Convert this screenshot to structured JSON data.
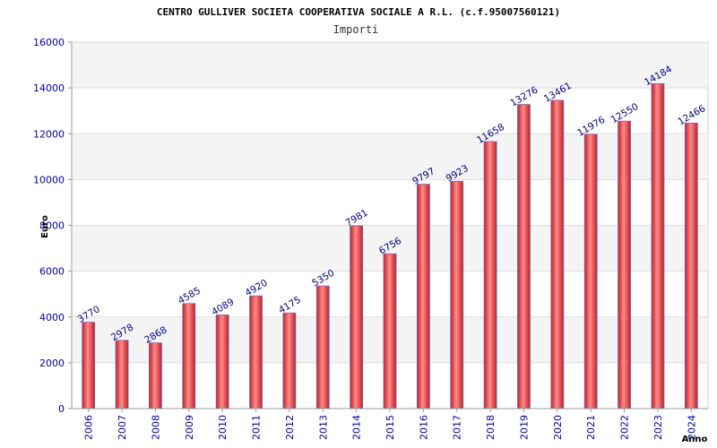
{
  "chart_data": {
    "type": "bar",
    "title": "CENTRO GULLIVER SOCIETA COOPERATIVA SOCIALE A R.L. (c.f.95007560121)",
    "subtitle": "Importi",
    "ylabel": "Euro",
    "xlabel": "Anno",
    "ylim": [
      0,
      16000
    ],
    "yticks": [
      "0",
      "2000",
      "4000",
      "6000",
      "8000",
      "10000",
      "12000",
      "14000",
      "16000"
    ],
    "grid": true,
    "categories": [
      "2006",
      "2007",
      "2008",
      "2009",
      "2010",
      "2011",
      "2012",
      "2013",
      "2014",
      "2015",
      "2016",
      "2017",
      "2018",
      "2019",
      "2020",
      "2021",
      "2022",
      "2023",
      "2024"
    ],
    "values": [
      3770,
      2978,
      2868,
      4585,
      4089,
      4920,
      4175,
      5350,
      7981,
      6756,
      9797,
      9923,
      11658,
      13276,
      13461,
      11976,
      12550,
      14184,
      12466
    ],
    "colors": {
      "bar": "#e03030",
      "bar_highlight": "#ff8a8a",
      "bar_edge": "#5a6fd0",
      "band": "#f4f4f4",
      "grid": "#dddddd",
      "tick_text": "#0000aa",
      "label_text": "#000080"
    }
  }
}
